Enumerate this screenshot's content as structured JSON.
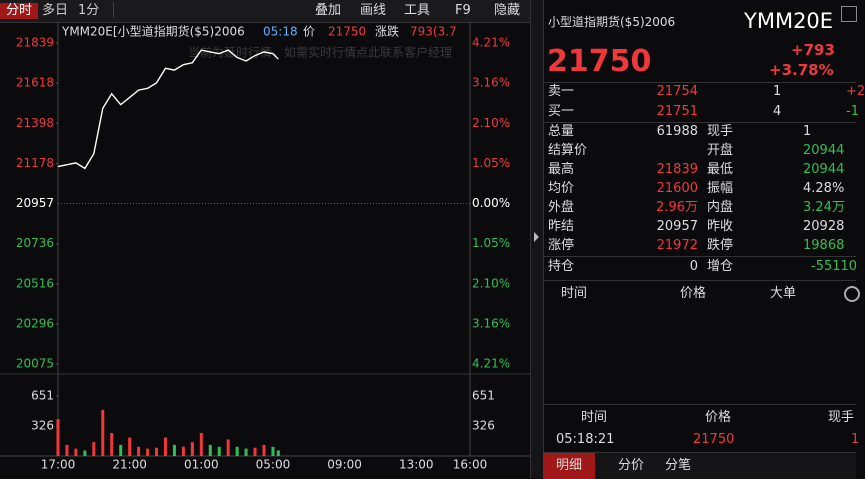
{
  "toolbar": {
    "tabs": [
      "分时",
      "多日",
      "1分"
    ],
    "tools": [
      "叠加",
      "画线",
      "工具",
      "F9",
      "隐藏"
    ]
  },
  "chart": {
    "type": "line",
    "header": {
      "symbol": "YMM20E[小型道指期货($5)2006",
      "time": "05:18",
      "price_label": "价",
      "price": "21750",
      "change_label": "涨跌",
      "change": "793(3.7"
    },
    "watermark": "当前为延时行情，如需实时行情点此联系客户经理",
    "ylim": [
      20075,
      21839
    ],
    "yticks": [
      21839,
      21618,
      21398,
      21178,
      20957,
      20736,
      20516,
      20296,
      20075
    ],
    "yticks_pct": [
      "4.21%",
      "3.16%",
      "2.10%",
      "1.05%",
      "0.00%",
      "1.05%",
      "2.10%",
      "3.16%",
      "4.21%"
    ],
    "vlim": [
      0,
      976
    ],
    "vticks": [
      651,
      326
    ],
    "xlim": [
      "17:00",
      "16:00"
    ],
    "xticks": [
      "17:00",
      "21:00",
      "01:00",
      "05:00",
      "09:00",
      "13:00",
      "16:00"
    ],
    "price": {
      "color": "#ffffff",
      "x": [
        "17:00",
        "17:30",
        "18:00",
        "18:30",
        "19:00",
        "19:30",
        "20:00",
        "20:30",
        "21:00",
        "21:30",
        "22:00",
        "22:30",
        "23:00",
        "23:30",
        "00:00",
        "00:30",
        "01:00",
        "01:30",
        "02:00",
        "02:30",
        "03:00",
        "03:30",
        "04:00",
        "04:30",
        "05:00",
        "05:18"
      ],
      "values": [
        21160,
        21170,
        21180,
        21150,
        21230,
        21480,
        21560,
        21500,
        21540,
        21580,
        21590,
        21620,
        21700,
        21690,
        21720,
        21730,
        21800,
        21790,
        21780,
        21800,
        21760,
        21740,
        21770,
        21790,
        21780,
        21750
      ]
    },
    "volume": {
      "values": [
        400,
        120,
        80,
        60,
        150,
        500,
        250,
        120,
        200,
        100,
        80,
        90,
        200,
        120,
        100,
        150,
        250,
        120,
        100,
        180,
        100,
        80,
        90,
        120,
        100,
        60
      ]
    }
  },
  "quote": {
    "title": "小型道指期货($5)2006",
    "code": "YMM20E",
    "price": 21750,
    "change": "+793",
    "change_pct": "+3.78%",
    "book": [
      {
        "label": "卖一",
        "price": 21754,
        "qty": 1,
        "delta": "+2",
        "dcolor": "red"
      },
      {
        "label": "买一",
        "price": 21751,
        "qty": 4,
        "delta": "-1",
        "dcolor": "green"
      }
    ],
    "stats": [
      [
        {
          "label": "总量",
          "value": 61988,
          "color": "white"
        },
        {
          "label": "现手",
          "value": 1,
          "color": "white"
        }
      ],
      [
        {
          "label": "结算价",
          "value": null,
          "color": "white"
        },
        {
          "label": "开盘",
          "value": 20944,
          "color": "green"
        }
      ],
      [
        {
          "label": "最高",
          "value": 21839,
          "color": "red"
        },
        {
          "label": "最低",
          "value": 20944,
          "color": "green"
        }
      ],
      [
        {
          "label": "均价",
          "value": 21600,
          "color": "red"
        },
        {
          "label": "振幅",
          "value": "4.28%",
          "color": "white"
        }
      ],
      [
        {
          "label": "外盘",
          "value": "2.96万",
          "color": "red"
        },
        {
          "label": "内盘",
          "value": "3.24万",
          "color": "green"
        }
      ],
      [
        {
          "label": "昨结",
          "value": 20957,
          "color": "white"
        },
        {
          "label": "昨收",
          "value": 20928,
          "color": "white"
        }
      ],
      [
        {
          "label": "涨停",
          "value": 21972,
          "color": "red"
        },
        {
          "label": "跌停",
          "value": 19868,
          "color": "green"
        }
      ]
    ],
    "oi": [
      {
        "label": "持仓",
        "value": 0,
        "color": "white"
      },
      {
        "label": "增仓",
        "value": -55110,
        "color": "green"
      }
    ],
    "list_headers": [
      "时间",
      "价格",
      "大单"
    ],
    "trades_headers": [
      "时间",
      "价格",
      "现手"
    ],
    "trades": [
      {
        "time": "05:18:21",
        "price": 21750,
        "qty": 1
      }
    ],
    "tabs": [
      "明细",
      "分价",
      "分笔"
    ]
  }
}
